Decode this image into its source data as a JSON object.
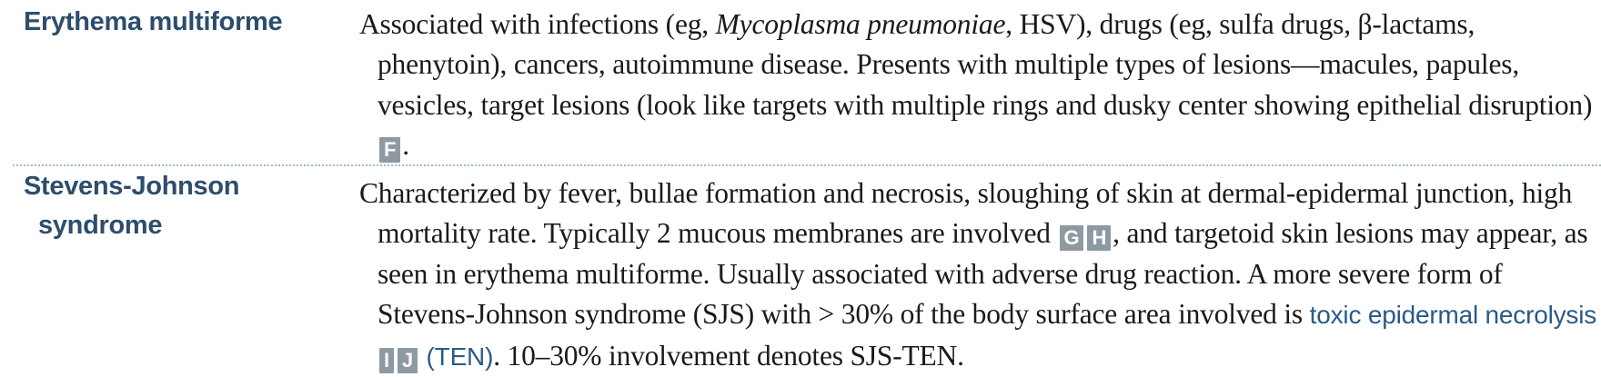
{
  "entries": [
    {
      "term": "Erythema multiforme",
      "segments": [
        {
          "text": "Associated with infections (eg, "
        },
        {
          "text": "Mycoplasma pneumoniae",
          "style": "italic"
        },
        {
          "text": ", HSV), drugs (eg, sulfa drugs, β-lactams, phenytoin), cancers, autoimmune disease. Presents with multiple types of lesions—macules, papules, vesicles, target lesions (look like targets with multiple rings and dusky center showing epithelial disruption) "
        },
        {
          "text": "F",
          "style": "tag"
        },
        {
          "text": "."
        }
      ]
    },
    {
      "term_line1": "Stevens-Johnson",
      "term_line2": "syndrome",
      "segments": [
        {
          "text": "Characterized by fever, bullae formation and necrosis, sloughing of skin at dermal-epidermal junction, high mortality rate. Typically 2 mucous membranes are involved "
        },
        {
          "text": "G",
          "style": "tag"
        },
        {
          "text": "H",
          "style": "tag"
        },
        {
          "text": ", and targetoid skin lesions may appear, as seen in erythema multiforme. Usually associated with adverse drug reaction. A more severe form of Stevens-Johnson syndrome (SJS) with > 30% of the body surface area involved is "
        },
        {
          "text": "toxic epidermal necrolysis",
          "style": "link"
        },
        {
          "text": " "
        },
        {
          "text": "I",
          "style": "tag"
        },
        {
          "text": "J",
          "style": "tag"
        },
        {
          "text": " (TEN)",
          "style": "link"
        },
        {
          "text": ". 10–30% involvement denotes SJS-TEN."
        }
      ]
    }
  ],
  "colors": {
    "term": "#2e4d6b",
    "link": "#2a5a86",
    "tag_bg": "#8d9aa2",
    "divider": "#9fbfc4"
  }
}
